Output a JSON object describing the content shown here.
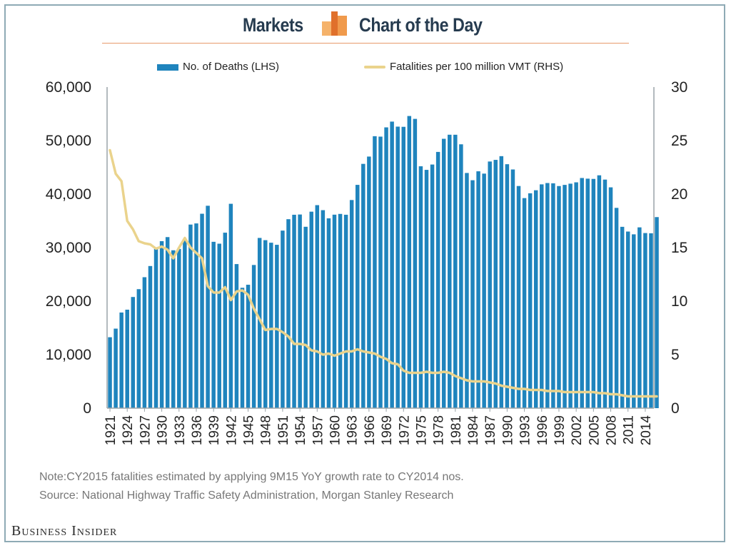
{
  "header": {
    "left_label": "Markets",
    "right_label": "Chart of the Day",
    "logo_color_light": "#f5b26a",
    "logo_color_dark": "#e0702b"
  },
  "legend": {
    "bars_label": "No. of Deaths (LHS)",
    "line_label": "Fatalities per 100 million VMT (RHS)"
  },
  "notes": {
    "note": "Note:CY2015 fatalities estimated by applying 9M15 YoY growth rate to CY2014 nos.",
    "source": "Source: National Highway Traffic Safety Administration, Morgan Stanley Research"
  },
  "brand": "Business Insider",
  "colors": {
    "bar": "#1f84bd",
    "line": "#ead38c",
    "axis": "#9aa3a8",
    "text": "#222222"
  },
  "chart_data": {
    "type": "bar+line",
    "x_start": 1921,
    "x_end": 2015,
    "x_tick_step": 3,
    "x_tick_labels": [
      "1921",
      "1924",
      "1927",
      "1930",
      "1933",
      "1936",
      "1939",
      "1942",
      "1945",
      "1948",
      "1951",
      "1954",
      "1957",
      "1960",
      "1963",
      "1966",
      "1969",
      "1972",
      "1975",
      "1978",
      "1981",
      "1984",
      "1987",
      "1990",
      "1993",
      "1996",
      "1999",
      "2002",
      "2005",
      "2008",
      "2011",
      "2014"
    ],
    "left_axis": {
      "min": 0,
      "max": 60000,
      "ticks": [
        0,
        10000,
        20000,
        30000,
        40000,
        50000,
        60000
      ],
      "tick_labels": [
        "0",
        "10,000",
        "20,000",
        "30,000",
        "40,000",
        "50,000",
        "60,000"
      ]
    },
    "right_axis": {
      "min": 0,
      "max": 30,
      "ticks": [
        0,
        5,
        10,
        15,
        20,
        25,
        30
      ],
      "tick_labels": [
        "0",
        "5",
        "10",
        "15",
        "20",
        "25",
        "30"
      ]
    },
    "series": [
      {
        "name": "No. of Deaths (LHS)",
        "kind": "bar",
        "axis": "left",
        "values": [
          13253,
          14859,
          17870,
          18400,
          20771,
          22234,
          24470,
          26557,
          29745,
          31204,
          31963,
          29499,
          29746,
          31615,
          34305,
          34519,
          36327,
          37819,
          31083,
          30734,
          32788,
          38187,
          26921,
          22491,
          23058,
          26752,
          31806,
          31391,
          30912,
          30523,
          33179,
          35309,
          36138,
          36185,
          33892,
          36714,
          37934,
          36995,
          35467,
          36154,
          36295,
          36139,
          38888,
          41723,
          45645,
          47011,
          50816,
          50737,
          52465,
          53543,
          52605,
          52569,
          54589,
          54052,
          45196,
          44525,
          45523,
          47878,
          50331,
          51093,
          51088,
          49301,
          43945,
          42589,
          44257,
          43825,
          46087,
          46390,
          47087,
          45582,
          44599,
          41508,
          39250,
          40150,
          40716,
          41817,
          42065,
          42013,
          41501,
          41717,
          41945,
          42196,
          43005,
          42884,
          42836,
          43510,
          42708,
          41259,
          37423,
          33883,
          32999,
          32479,
          33782,
          32719,
          32675,
          35700
        ]
      },
      {
        "name": "Fatalities per 100 million VMT (RHS)",
        "kind": "line",
        "axis": "right",
        "values": [
          24.1,
          21.9,
          21.2,
          17.5,
          16.7,
          15.6,
          15.4,
          15.3,
          14.9,
          15.1,
          14.8,
          14.0,
          15.0,
          15.9,
          15.0,
          14.5,
          14.0,
          11.4,
          10.8,
          10.8,
          11.3,
          10.1,
          10.9,
          11.0,
          10.6,
          9.3,
          8.3,
          7.3,
          7.4,
          7.4,
          7.1,
          6.7,
          6.0,
          6.0,
          5.9,
          5.4,
          5.3,
          5.0,
          5.1,
          4.9,
          5.1,
          5.3,
          5.3,
          5.5,
          5.3,
          5.2,
          5.1,
          4.8,
          4.6,
          4.2,
          4.1,
          3.5,
          3.3,
          3.3,
          3.3,
          3.4,
          3.3,
          3.3,
          3.4,
          3.3,
          3.0,
          2.8,
          2.6,
          2.5,
          2.5,
          2.5,
          2.4,
          2.3,
          2.1,
          2.0,
          1.9,
          1.8,
          1.8,
          1.7,
          1.7,
          1.7,
          1.6,
          1.6,
          1.6,
          1.5,
          1.5,
          1.5,
          1.5,
          1.5,
          1.5,
          1.4,
          1.4,
          1.3,
          1.3,
          1.2,
          1.1,
          1.1,
          1.1,
          1.1,
          1.1,
          1.1
        ]
      }
    ]
  }
}
